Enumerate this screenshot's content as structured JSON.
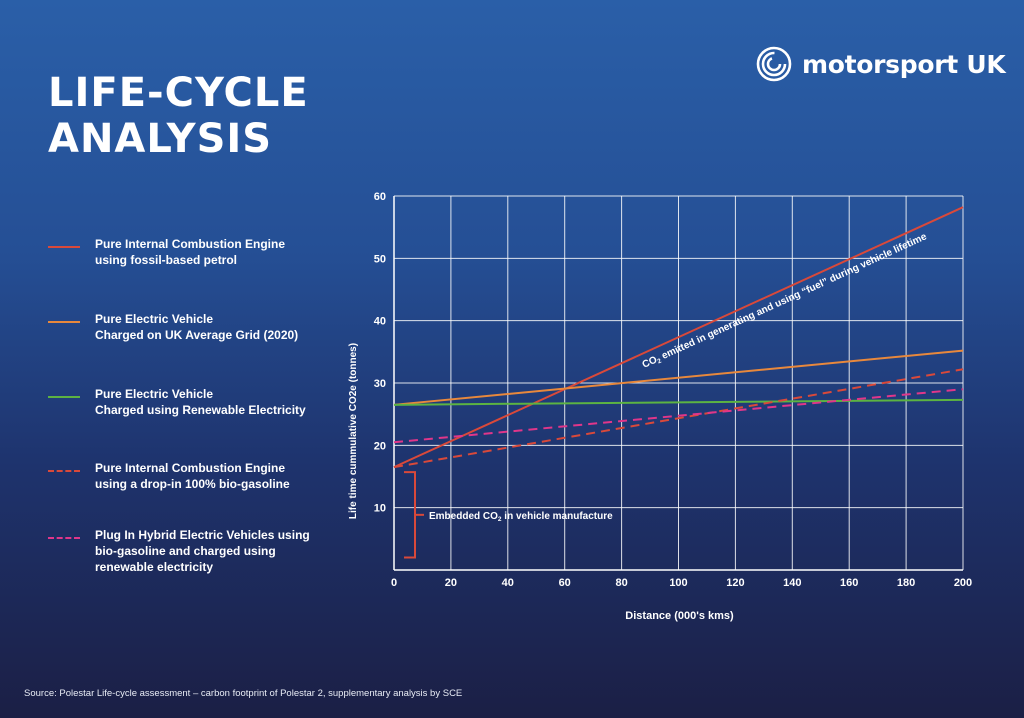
{
  "header": {
    "title": "LIFE-CYCLE\nANALYSIS",
    "logo_text": "motorsport UK"
  },
  "legend": [
    {
      "label": "Pure Internal Combustion Engine\nusing fossil-based petrol",
      "color": "#d9493a",
      "dash": "solid"
    },
    {
      "label": "Pure Electric Vehicle\nCharged on UK Average Grid (2020)",
      "color": "#e8883c",
      "dash": "solid"
    },
    {
      "label": "Pure Electric Vehicle\nCharged using Renewable Electricity",
      "color": "#5cb342",
      "dash": "solid"
    },
    {
      "label": "Pure Internal Combustion Engine\nusing a drop-in 100% bio-gasoline",
      "color": "#d9493a",
      "dash": "dashed"
    },
    {
      "label": "Plug In Hybrid Electric Vehicles using\nbio-gasoline and charged using\nrenewable electricity",
      "color": "#e0368a",
      "dash": "dashed"
    }
  ],
  "chart_data": {
    "type": "line",
    "xlabel": "Distance (000's kms)",
    "ylabel": "Life time cummulative CO2e (tonnes)",
    "xlim": [
      0,
      200
    ],
    "ylim": [
      0,
      60
    ],
    "xticks": [
      0,
      20,
      40,
      60,
      80,
      100,
      120,
      140,
      160,
      180,
      200
    ],
    "yticks": [
      10,
      20,
      30,
      40,
      50,
      60
    ],
    "grid": true,
    "series": [
      {
        "name": "Pure Internal Combustion Engine using fossil-based petrol",
        "color": "#d9493a",
        "dash": "solid",
        "x": [
          0,
          200
        ],
        "y": [
          16.5,
          58.2
        ]
      },
      {
        "name": "Pure Electric Vehicle Charged on UK Average Grid (2020)",
        "color": "#e8883c",
        "dash": "solid",
        "x": [
          0,
          200
        ],
        "y": [
          26.5,
          35.2
        ]
      },
      {
        "name": "Pure Electric Vehicle Charged using Renewable Electricity",
        "color": "#5cb342",
        "dash": "solid",
        "x": [
          0,
          200
        ],
        "y": [
          26.5,
          27.3
        ]
      },
      {
        "name": "Pure Internal Combustion Engine using a drop-in 100% bio-gasoline",
        "color": "#d9493a",
        "dash": "dashed",
        "x": [
          0,
          200
        ],
        "y": [
          16.5,
          32.2
        ]
      },
      {
        "name": "Plug In Hybrid Electric Vehicles using bio-gasoline and charged using renewable electricity",
        "color": "#e0368a",
        "dash": "dashed",
        "x": [
          0,
          200
        ],
        "y": [
          20.5,
          29.0
        ]
      }
    ],
    "annotations": [
      {
        "text_pre": "CO",
        "text_sub": "2",
        "text_post": " emitted in generating and using “fuel” during vehicle lifetime"
      },
      {
        "text_pre": "Embedded CO",
        "text_sub": "2",
        "text_post": " in vehicle manufacture",
        "bracket_y": [
          2,
          15.7
        ]
      }
    ]
  },
  "footer": {
    "source": "Source: Polestar Life-cycle assessment – carbon footprint of Polestar 2, supplementary analysis by SCE"
  }
}
